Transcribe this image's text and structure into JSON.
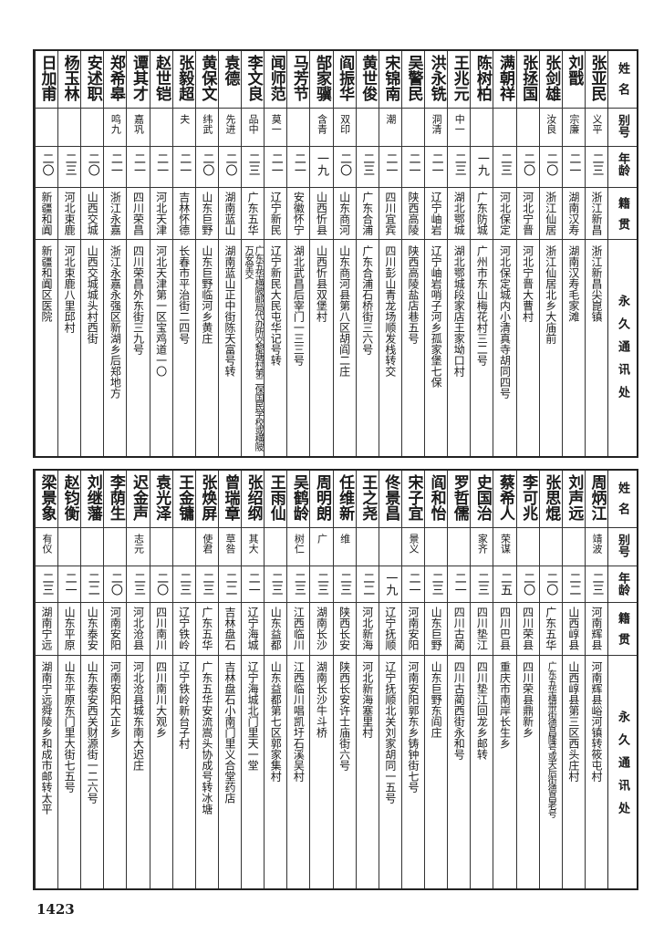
{
  "headers": {
    "name": "姓名",
    "alias": "别号",
    "age": "年龄",
    "native": "籍贯",
    "address": "永久通讯处"
  },
  "top_table": [
    {
      "name": "张亚民",
      "alias": "义平",
      "age": "二三",
      "native": "浙江新昌",
      "address": "浙江新昌尖崑镇"
    },
    {
      "name": "刘戬",
      "alias": "宗廉",
      "age": "二一",
      "native": "湖南汉寿",
      "address": "湖南汉寿毛家滩"
    },
    {
      "name": "张剑雄",
      "alias": "汝良",
      "age": "二〇",
      "native": "浙江仙居",
      "address": "浙江仙居北乡大庙前"
    },
    {
      "name": "张拯国",
      "alias": "",
      "age": "二〇",
      "native": "河北宁晋",
      "address": "河北宁晋大曹村"
    },
    {
      "name": "满朝祥",
      "alias": "",
      "age": "二三",
      "native": "河北保定",
      "address": "河北保定城内小清真寺胡同四号"
    },
    {
      "name": "陈树柏",
      "alias": "",
      "age": "一九",
      "native": "广东防城",
      "address": "广州市东山梅花村三二号"
    },
    {
      "name": "王兆元",
      "alias": "中一",
      "age": "二三",
      "native": "湖北鄂城",
      "address": "湖北鄂城段家店王家坳口村"
    },
    {
      "name": "洪永铣",
      "alias": "洞清",
      "age": "二一",
      "native": "辽宁岫岩",
      "address": "辽宁岫岩哨子河乡孤家堡七保"
    },
    {
      "name": "吴警民",
      "alias": "",
      "age": "二一",
      "native": "陕西高陵",
      "address": "陕西高陵盐店巷五号"
    },
    {
      "name": "宋锦南",
      "alias": "潮",
      "age": "二一",
      "native": "四川宜宾",
      "address": "四川彭山青龙场顺发栈转交"
    },
    {
      "name": "黄世俊",
      "alias": "",
      "age": "二三",
      "native": "广东合浦",
      "address": "广东合浦石桥街三六号"
    },
    {
      "name": "阎振华",
      "alias": "双印",
      "age": "二〇",
      "native": "山东商河",
      "address": "山东商河县第八区胡阎二庄"
    },
    {
      "name": "郜家骥",
      "alias": "含青",
      "age": "一九",
      "native": "山西忻县",
      "address": "山西忻县双堡村"
    },
    {
      "name": "马芳节",
      "alias": "",
      "age": "二一",
      "native": "安徽怀宁",
      "address": "湖北武昌后宰门一三三号"
    },
    {
      "name": "闻师范",
      "alias": "莫一",
      "age": "二一",
      "native": "辽宁新民",
      "address": "辽宁新民大民屯华记号转"
    },
    {
      "name": "李文良",
      "alias": "品中",
      "age": "二三",
      "native": "广东五华",
      "address": "广东五华横陂邮局代办所交黎塘村第二保国民学校或横陂万安堂交"
    },
    {
      "name": "袁德",
      "alias": "先进",
      "age": "二〇",
      "native": "湖南蓝山",
      "address": "湖南蓝山正中街陈天富号转"
    },
    {
      "name": "黄保文",
      "alias": "纬武",
      "age": "二〇",
      "native": "山东巨野",
      "address": "山东巨野临河乡黄庄"
    },
    {
      "name": "张毅超",
      "alias": "夫",
      "age": "二一",
      "native": "吉林怀德",
      "address": "长春市平治街二四号"
    },
    {
      "name": "赵世铠",
      "alias": "",
      "age": "二一",
      "native": "河北天津",
      "address": "河北天津第一区宝鸡道一〇"
    },
    {
      "name": "谭其才",
      "alias": "嘉巩",
      "age": "二一",
      "native": "四川荣昌",
      "address": "四川荣昌外东街三九号"
    },
    {
      "name": "郑希皋",
      "alias": "鸣九",
      "age": "二一",
      "native": "浙江永嘉",
      "address": "浙江永嘉永强区新湖乡后郑地方"
    },
    {
      "name": "安述职",
      "alias": "",
      "age": "二〇",
      "native": "山西交城",
      "address": "山西交城城头村西街"
    },
    {
      "name": "杨玉林",
      "alias": "",
      "age": "二三",
      "native": "河北束鹿",
      "address": "河北束鹿八里邱村"
    },
    {
      "name": "日加甫",
      "alias": "",
      "age": "二〇",
      "native": "新疆和阗",
      "address": "新疆和阗区医院"
    }
  ],
  "bottom_table": [
    {
      "name": "周炳江",
      "alias": "靖波",
      "age": "二三",
      "native": "河南辉县",
      "address": "河南辉县峪河镇转筱屯村"
    },
    {
      "name": "刘声远",
      "alias": "",
      "age": "二二",
      "native": "山西崞县",
      "address": "山西崞县第三区西头庄村"
    },
    {
      "name": "张思焜",
      "alias": "",
      "age": "二〇",
      "native": "广东五华",
      "address": "广东五华横带街德昌隆号或天后街德昌老号"
    },
    {
      "name": "李可兆",
      "alias": "",
      "age": "二〇",
      "native": "四川荣县",
      "address": "四川荣县鼎新乡"
    },
    {
      "name": "蔡希人",
      "alias": "荣谋",
      "age": "二五",
      "native": "四川巴县",
      "address": "重庆市南岸长生乡"
    },
    {
      "name": "史国治",
      "alias": "家齐",
      "age": "二三",
      "native": "四川垫江",
      "address": "四川垫江回龙乡邮转"
    },
    {
      "name": "罗哲儒",
      "alias": "",
      "age": "二一",
      "native": "四川古蔺",
      "address": "四川古蔺西街永和号"
    },
    {
      "name": "阎和怡",
      "alias": "",
      "age": "二三",
      "native": "山东巨野",
      "address": "山东巨野东阎庄"
    },
    {
      "name": "宋子宜",
      "alias": "景义",
      "age": "二一",
      "native": "河南安阳",
      "address": "河南安阳郭东乡铸钟街七号"
    },
    {
      "name": "佟景昌",
      "alias": "",
      "age": "一九",
      "native": "辽宁抚顺",
      "address": "辽宁抚顺北关刘家胡同一五号"
    },
    {
      "name": "王之尧",
      "alias": "",
      "age": "二二",
      "native": "河北新海",
      "address": "河北新海塞里村"
    },
    {
      "name": "任维新",
      "alias": "维",
      "age": "二三",
      "native": "陕西长安",
      "address": "陕西长安许士庙街六号"
    },
    {
      "name": "周明朗",
      "alias": "广",
      "age": "二三",
      "native": "湖南长沙",
      "address": "湖南长沙牛斗桥"
    },
    {
      "name": "吴鹤龄",
      "alias": "树仁",
      "age": "二三",
      "native": "江西临川",
      "address": "江西临川唱凯圩石溪吴村"
    },
    {
      "name": "王雨仙",
      "alias": "",
      "age": "二三",
      "native": "山东益都",
      "address": "山东益都第七区郭家集村"
    },
    {
      "name": "张绍纲",
      "alias": "其大",
      "age": "二一",
      "native": "辽宁海城",
      "address": "辽宁海城北门里天一堂"
    },
    {
      "name": "曾瑞章",
      "alias": "草咎",
      "age": "二二",
      "native": "吉林盘石",
      "address": "吉林盘石小南门里义合堂药店"
    },
    {
      "name": "张焕屏",
      "alias": "使君",
      "age": "二三",
      "native": "广东五华",
      "address": "广东五华安流嵩头协成号转冰塘"
    },
    {
      "name": "王金镛",
      "alias": "",
      "age": "二三",
      "native": "辽宁铁岭",
      "address": "辽宁铁岭新台子村"
    },
    {
      "name": "袁光泽",
      "alias": "",
      "age": "二〇",
      "native": "四川南川",
      "address": "四川南川大观乡"
    },
    {
      "name": "迟金声",
      "alias": "志元",
      "age": "二三",
      "native": "河北沧县",
      "address": "河北沧县城东南大迟庄"
    },
    {
      "name": "李荫生",
      "alias": "",
      "age": "二〇",
      "native": "河南安阳",
      "address": "河南安阳大正乡"
    },
    {
      "name": "刘继藩",
      "alias": "",
      "age": "二二",
      "native": "山东泰安",
      "address": "山东泰安西关财源街一二六号"
    },
    {
      "name": "赵钧衡",
      "alias": "",
      "age": "二一",
      "native": "山东平原",
      "address": "山东平原东门里大街七五号"
    },
    {
      "name": "梁景象",
      "alias": "有仪",
      "age": "二三",
      "native": "湖南宁远",
      "address": "湖南宁远舜陵乡和成市邮转太平"
    }
  ],
  "page_number": "1423"
}
